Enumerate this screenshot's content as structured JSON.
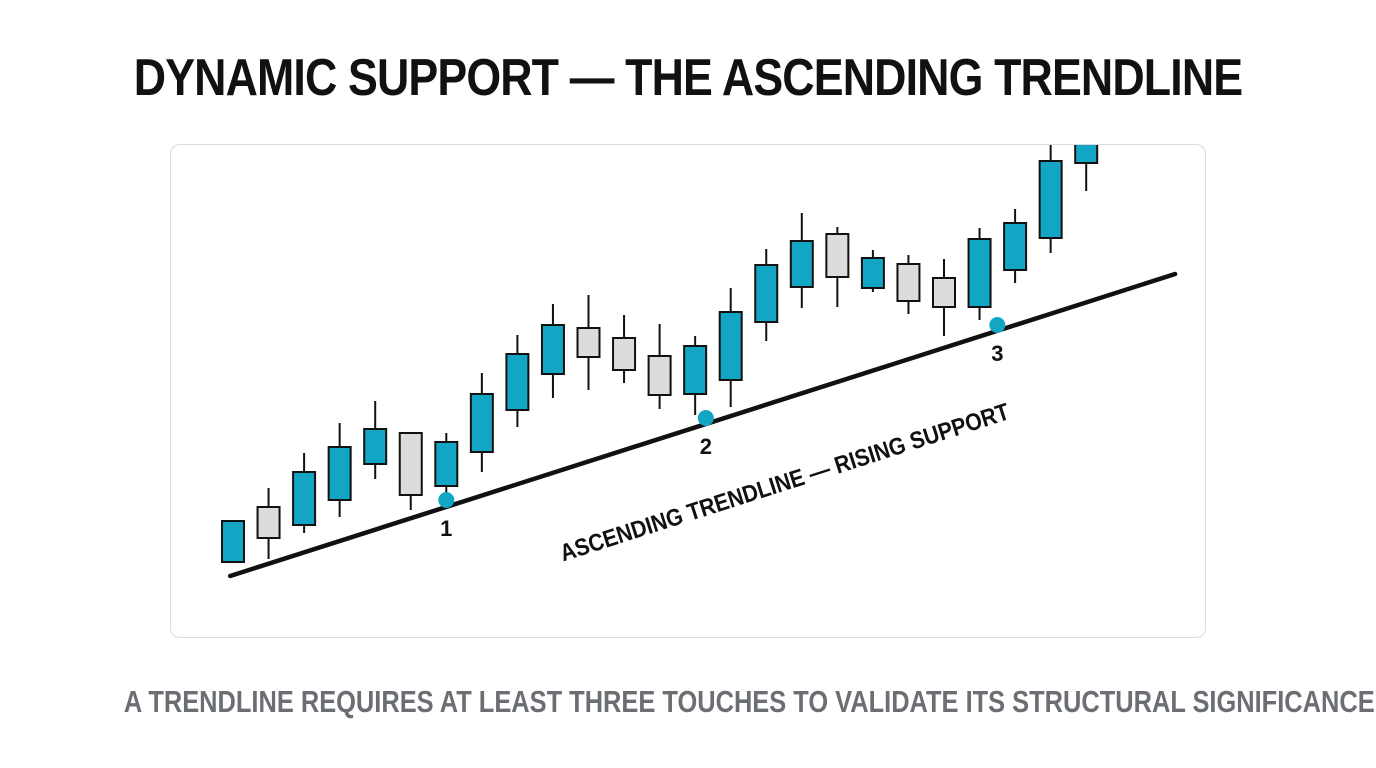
{
  "title": "DYNAMIC SUPPORT — THE ASCENDING TRENDLINE",
  "caption": "A TRENDLINE REQUIRES AT LEAST THREE TOUCHES TO VALIDATE ITS STRUCTURAL SIGNIFICANCE.",
  "colors": {
    "bullish": "#12a6c4",
    "bearish": "#dcdcdc",
    "outline": "#111111",
    "trendline": "#111111",
    "touch_point": "#12a6c4"
  },
  "chart_data": {
    "type": "candlestick",
    "title": "DYNAMIC SUPPORT — THE ASCENDING TRENDLINE",
    "xlabel": "",
    "ylabel": "",
    "grid": false,
    "ylim": [
      0,
      450
    ],
    "candles": [
      {
        "open": 41,
        "close": 82,
        "high": 82,
        "low": 41,
        "dir": "up"
      },
      {
        "open": 96,
        "close": 65,
        "high": 115,
        "low": 44,
        "dir": "down"
      },
      {
        "open": 78,
        "close": 131,
        "high": 150,
        "low": 70,
        "dir": "up"
      },
      {
        "open": 103,
        "close": 156,
        "high": 180,
        "low": 86,
        "dir": "up"
      },
      {
        "open": 139,
        "close": 174,
        "high": 202,
        "low": 124,
        "dir": "up"
      },
      {
        "open": 170,
        "close": 108,
        "high": 170,
        "low": 93,
        "dir": "down"
      },
      {
        "open": 117,
        "close": 161,
        "high": 170,
        "low": 106,
        "dir": "up"
      },
      {
        "open": 151,
        "close": 209,
        "high": 230,
        "low": 131,
        "dir": "up"
      },
      {
        "open": 193,
        "close": 249,
        "high": 268,
        "low": 176,
        "dir": "up"
      },
      {
        "open": 229,
        "close": 278,
        "high": 299,
        "low": 205,
        "dir": "up"
      },
      {
        "open": 275,
        "close": 246,
        "high": 308,
        "low": 213,
        "dir": "down"
      },
      {
        "open": 265,
        "close": 233,
        "high": 288,
        "low": 220,
        "dir": "down"
      },
      {
        "open": 247,
        "close": 208,
        "high": 279,
        "low": 194,
        "dir": "down"
      },
      {
        "open": 209,
        "close": 257,
        "high": 267,
        "low": 188,
        "dir": "up"
      },
      {
        "open": 223,
        "close": 291,
        "high": 315,
        "low": 196,
        "dir": "up"
      },
      {
        "open": 281,
        "close": 338,
        "high": 354,
        "low": 262,
        "dir": "up"
      },
      {
        "open": 316,
        "close": 362,
        "high": 390,
        "low": 295,
        "dir": "up"
      },
      {
        "open": 369,
        "close": 326,
        "high": 376,
        "low": 296,
        "dir": "down"
      },
      {
        "open": 315,
        "close": 345,
        "high": 353,
        "low": 311,
        "dir": "up"
      },
      {
        "open": 339,
        "close": 302,
        "high": 348,
        "low": 289,
        "dir": "down"
      },
      {
        "open": 325,
        "close": 296,
        "high": 344,
        "low": 267,
        "dir": "down"
      },
      {
        "open": 296,
        "close": 364,
        "high": 375,
        "low": 283,
        "dir": "up"
      },
      {
        "open": 333,
        "close": 380,
        "high": 394,
        "low": 320,
        "dir": "up"
      },
      {
        "open": 365,
        "close": 442,
        "high": 463,
        "low": 350,
        "dir": "up"
      },
      {
        "open": 440,
        "close": 470,
        "high": 470,
        "low": 412,
        "dir": "up"
      }
    ],
    "trendline": {
      "label": "ASCENDING TRENDLINE — RISING SUPPORT",
      "start": {
        "candle": -0.08,
        "price": 27
      },
      "end": {
        "candle": 26.5,
        "price": 329
      }
    },
    "touches": [
      {
        "label": "1",
        "candle": 6,
        "price": 103
      },
      {
        "label": "2",
        "candle": 13.3,
        "price": 185
      },
      {
        "label": "3",
        "candle": 21.5,
        "price": 278
      }
    ]
  }
}
